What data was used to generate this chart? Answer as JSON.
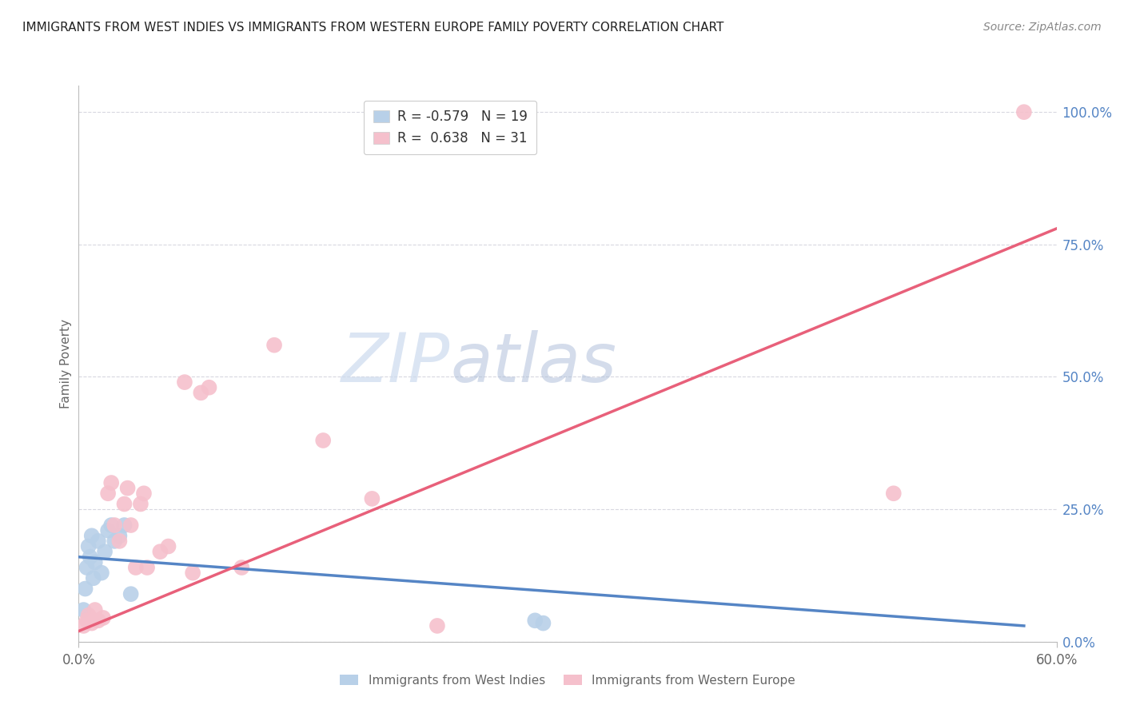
{
  "title": "IMMIGRANTS FROM WEST INDIES VS IMMIGRANTS FROM WESTERN EUROPE FAMILY POVERTY CORRELATION CHART",
  "source": "Source: ZipAtlas.com",
  "ylabel": "Family Poverty",
  "ylabel_right_ticks": [
    "0.0%",
    "25.0%",
    "50.0%",
    "75.0%",
    "100.0%"
  ],
  "ylabel_right_vals": [
    0.0,
    0.25,
    0.5,
    0.75,
    1.0
  ],
  "legend_blue_r_label": "R = ",
  "legend_blue_r_val": "-0.579",
  "legend_blue_n_label": "N = ",
  "legend_blue_n_val": "19",
  "legend_pink_r_label": "R =  ",
  "legend_pink_r_val": "0.638",
  "legend_pink_n_label": "N = ",
  "legend_pink_n_val": "31",
  "legend_label_blue": "Immigrants from West Indies",
  "legend_label_pink": "Immigrants from Western Europe",
  "xlim": [
    0.0,
    0.6
  ],
  "ylim": [
    0.0,
    1.05
  ],
  "blue_color": "#b8d0e8",
  "blue_line_color": "#5585c5",
  "pink_color": "#f5c0cc",
  "pink_line_color": "#e8607a",
  "grid_color": "#d8d8e0",
  "watermark_zip": "ZIP",
  "watermark_atlas": "atlas",
  "blue_scatter_x": [
    0.003,
    0.004,
    0.005,
    0.006,
    0.007,
    0.008,
    0.009,
    0.01,
    0.012,
    0.014,
    0.016,
    0.018,
    0.02,
    0.022,
    0.025,
    0.028,
    0.032,
    0.28,
    0.285
  ],
  "blue_scatter_y": [
    0.06,
    0.1,
    0.14,
    0.18,
    0.16,
    0.2,
    0.12,
    0.15,
    0.19,
    0.13,
    0.17,
    0.21,
    0.22,
    0.19,
    0.2,
    0.22,
    0.09,
    0.04,
    0.035
  ],
  "pink_scatter_x": [
    0.003,
    0.005,
    0.006,
    0.008,
    0.01,
    0.012,
    0.015,
    0.018,
    0.02,
    0.022,
    0.025,
    0.028,
    0.03,
    0.032,
    0.035,
    0.038,
    0.04,
    0.042,
    0.05,
    0.055,
    0.065,
    0.07,
    0.075,
    0.08,
    0.1,
    0.12,
    0.15,
    0.18,
    0.22,
    0.5,
    0.58
  ],
  "pink_scatter_y": [
    0.03,
    0.04,
    0.05,
    0.035,
    0.06,
    0.04,
    0.045,
    0.28,
    0.3,
    0.22,
    0.19,
    0.26,
    0.29,
    0.22,
    0.14,
    0.26,
    0.28,
    0.14,
    0.17,
    0.18,
    0.49,
    0.13,
    0.47,
    0.48,
    0.14,
    0.56,
    0.38,
    0.27,
    0.03,
    0.28,
    1.0
  ],
  "blue_line_x": [
    0.0,
    0.58
  ],
  "blue_line_y": [
    0.16,
    0.03
  ],
  "pink_line_x": [
    0.0,
    0.6
  ],
  "pink_line_y": [
    0.02,
    0.78
  ]
}
